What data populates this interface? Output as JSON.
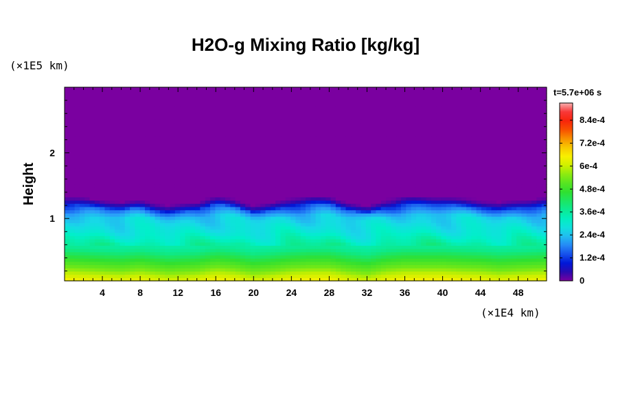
{
  "chart_data": {
    "type": "heatmap",
    "title": "H2O-g Mixing Ratio [kg/kg]",
    "ylabel": "Height",
    "x_unit": "(×1E4 km)",
    "y_unit": "(×1E5 km)",
    "time_label": "t=5.7e+06 s",
    "xlim": [
      0,
      51
    ],
    "ylim": [
      0.05,
      3.0
    ],
    "x_ticks": [
      4,
      8,
      12,
      16,
      20,
      24,
      28,
      32,
      36,
      40,
      44,
      48
    ],
    "y_ticks": [
      1,
      2
    ],
    "colorbar": {
      "min": 0,
      "max": 0.00093,
      "tick_values": [
        0,
        0.00012,
        0.00024,
        0.00036,
        0.00048,
        0.0006,
        0.00072,
        0.00084
      ],
      "tick_labels": [
        "0",
        "1.2e-4",
        "2.4e-4",
        "3.6e-4",
        "4.8e-4",
        "6e-4",
        "7.2e-4",
        "8.4e-4"
      ]
    },
    "field_profile": {
      "description_levels": [
        {
          "height": 0.05,
          "value": 0.00066
        },
        {
          "height": 0.3,
          "value": 0.00052
        },
        {
          "height": 0.55,
          "value": 0.00038
        },
        {
          "height": 0.8,
          "value": 0.0003
        },
        {
          "height": 1.05,
          "value": 0.00025
        },
        {
          "height": 1.3,
          "value": 6e-05
        },
        {
          "height": 1.5,
          "value": 0.0
        }
      ],
      "interface_height_x": [
        0,
        3,
        6,
        8,
        11,
        14,
        16,
        18,
        20,
        22,
        24,
        26,
        28,
        30,
        32,
        34,
        36,
        38,
        40,
        42,
        44,
        46,
        48,
        51
      ],
      "interface_height_y": [
        1.35,
        1.3,
        1.25,
        1.3,
        1.2,
        1.25,
        1.35,
        1.3,
        1.2,
        1.25,
        1.32,
        1.35,
        1.35,
        1.25,
        1.18,
        1.3,
        1.35,
        1.35,
        1.35,
        1.32,
        1.3,
        1.25,
        1.28,
        1.32
      ]
    }
  }
}
